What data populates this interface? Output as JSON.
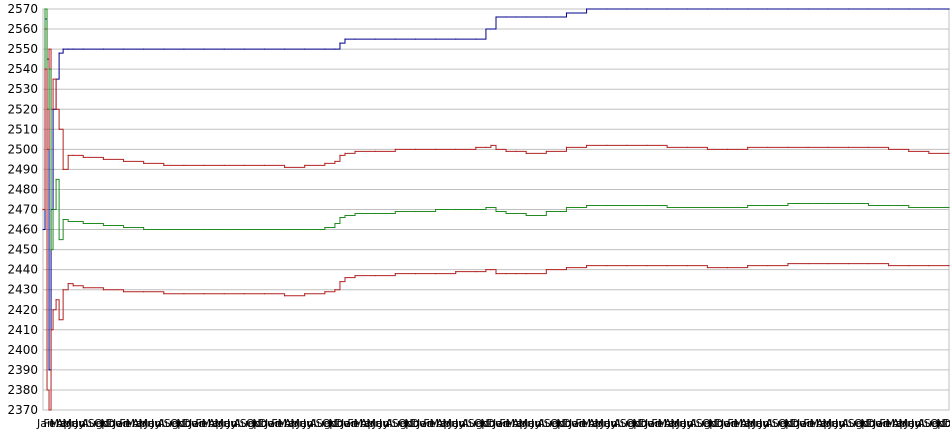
{
  "chart_data": {
    "type": "line",
    "title": "",
    "xlabel": "",
    "ylabel": "",
    "ylim": [
      2370,
      2570
    ],
    "yticks": [
      2370,
      2380,
      2390,
      2400,
      2410,
      2420,
      2430,
      2440,
      2450,
      2460,
      2470,
      2480,
      2490,
      2500,
      2510,
      2520,
      2530,
      2540,
      2550,
      2560,
      2570
    ],
    "xticks": [
      "Jan",
      "Feb",
      "Mar",
      "Apr",
      "May",
      "Jun",
      "Jul",
      "Aug",
      "Sep",
      "Oct",
      "Nov",
      "Dec",
      "Jan",
      "Feb",
      "Mar",
      "Apr",
      "May",
      "Jun",
      "Jul",
      "Aug",
      "Sep",
      "Oct",
      "Nov",
      "Dec",
      "Jan",
      "Feb",
      "Mar",
      "Apr",
      "May",
      "Jun",
      "Jul",
      "Aug",
      "Sep",
      "Oct",
      "Nov",
      "Dec",
      "Jan",
      "Feb",
      "Mar",
      "Apr",
      "May",
      "Jun",
      "Jul",
      "Aug",
      "Sep",
      "Oct",
      "Nov",
      "Dec",
      "Jan",
      "Feb",
      "Mar",
      "Apr",
      "May",
      "Jun",
      "Jul",
      "Aug",
      "Sep",
      "Oct",
      "Nov",
      "Dec",
      "Jan",
      "Feb",
      "Mar",
      "Apr",
      "May",
      "Jun",
      "Jul",
      "Aug",
      "Sep",
      "Oct",
      "Nov",
      "Dec",
      "Jan",
      "Feb",
      "Mar",
      "Apr",
      "May",
      "Jun",
      "Jul",
      "Aug",
      "Sep",
      "Oct",
      "Nov",
      "Dec",
      "Jan",
      "Feb",
      "Mar",
      "Apr",
      "May",
      "Jun",
      "Jul",
      "Aug",
      "Sep",
      "Oct",
      "Nov",
      "Dec",
      "Jan",
      "Feb",
      "Mar",
      "Apr",
      "May",
      "Jun",
      "Jul",
      "Aug",
      "Sep",
      "Oct",
      "Nov",
      "Dec",
      "Jan",
      "Feb",
      "Mar",
      "Apr",
      "May",
      "Jun",
      "Jul",
      "Aug",
      "Sep",
      "Oct",
      "Nov",
      "Dec",
      "Jan",
      "Feb",
      "Mar",
      "Apr",
      "May",
      "Jun",
      "Jul",
      "Aug",
      "Sep",
      "Oct",
      "Nov",
      "Dec",
      "Jan",
      "Feb",
      "Mar",
      "Apr",
      "May",
      "Jun",
      "Jul",
      "Aug",
      "Sep",
      "Oct",
      "Nov",
      "Dec"
    ],
    "grid": true,
    "legend": "none",
    "x": [
      0,
      2,
      4,
      6,
      8,
      10,
      13,
      16,
      20,
      25,
      30,
      40,
      60,
      80,
      100,
      120,
      140,
      160,
      180,
      200,
      220,
      240,
      260,
      280,
      290,
      295,
      300,
      310,
      330,
      350,
      370,
      390,
      410,
      430,
      440,
      445,
      450,
      460,
      470,
      480,
      500,
      520,
      540,
      560,
      580,
      600,
      620,
      640,
      660,
      680,
      700,
      720,
      740,
      760,
      780,
      800,
      820,
      840,
      860,
      880,
      900
    ],
    "series": [
      {
        "color": "#00008b",
        "values": [
          2460,
          2565,
          2545,
          2390,
          2470,
          2520,
          2535,
          2548,
          2550,
          2550,
          2550,
          2550,
          2550,
          2550,
          2550,
          2550,
          2550,
          2550,
          2550,
          2550,
          2550,
          2550,
          2550,
          2550,
          2550,
          2553,
          2555,
          2555,
          2555,
          2555,
          2555,
          2555,
          2555,
          2555,
          2560,
          2560,
          2566,
          2566,
          2566,
          2566,
          2566,
          2568,
          2570,
          2570,
          2570,
          2570,
          2570,
          2570,
          2570,
          2570,
          2570,
          2570,
          2570,
          2570,
          2570,
          2570,
          2570,
          2570,
          2570,
          2570,
          2570
        ]
      },
      {
        "color": "#b22222",
        "values": [
          2470,
          2560,
          2500,
          2550,
          2520,
          2535,
          2520,
          2510,
          2490,
          2497,
          2497,
          2496,
          2495,
          2494,
          2493,
          2492,
          2492,
          2492,
          2492,
          2492,
          2492,
          2491,
          2492,
          2493,
          2494,
          2497,
          2498,
          2499,
          2499,
          2500,
          2500,
          2500,
          2500,
          2501,
          2501,
          2502,
          2500,
          2499,
          2499,
          2498,
          2499,
          2501,
          2502,
          2502,
          2502,
          2502,
          2501,
          2501,
          2500,
          2500,
          2501,
          2501,
          2501,
          2501,
          2501,
          2501,
          2501,
          2500,
          2499,
          2498,
          2498
        ]
      },
      {
        "color": "#228b22",
        "values": [
          2470,
          2570,
          2520,
          2540,
          2450,
          2470,
          2485,
          2455,
          2465,
          2464,
          2464,
          2463,
          2462,
          2461,
          2460,
          2460,
          2460,
          2460,
          2460,
          2460,
          2460,
          2460,
          2460,
          2461,
          2463,
          2466,
          2467,
          2468,
          2468,
          2469,
          2469,
          2470,
          2470,
          2470,
          2471,
          2471,
          2469,
          2468,
          2468,
          2467,
          2469,
          2471,
          2472,
          2472,
          2472,
          2472,
          2471,
          2471,
          2471,
          2471,
          2472,
          2472,
          2473,
          2473,
          2473,
          2473,
          2472,
          2472,
          2471,
          2471,
          2471
        ]
      },
      {
        "color": "#b22222",
        "values": [
          2470,
          2540,
          2380,
          2370,
          2410,
          2420,
          2425,
          2415,
          2430,
          2433,
          2432,
          2431,
          2430,
          2429,
          2429,
          2428,
          2428,
          2428,
          2428,
          2428,
          2428,
          2427,
          2428,
          2429,
          2430,
          2434,
          2436,
          2437,
          2437,
          2438,
          2438,
          2438,
          2439,
          2439,
          2440,
          2440,
          2438,
          2438,
          2438,
          2438,
          2440,
          2441,
          2442,
          2442,
          2442,
          2442,
          2442,
          2442,
          2441,
          2441,
          2442,
          2442,
          2443,
          2443,
          2443,
          2443,
          2443,
          2442,
          2442,
          2442,
          2442
        ]
      }
    ]
  }
}
